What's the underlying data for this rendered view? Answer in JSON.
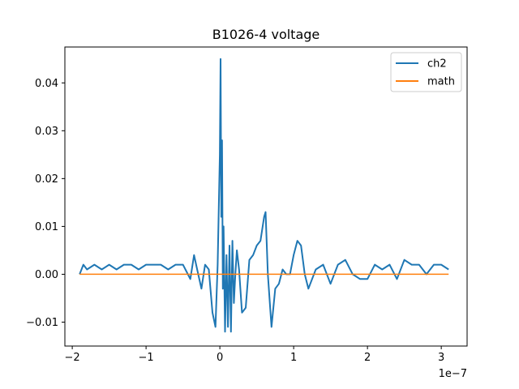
{
  "chart_data": {
    "type": "line",
    "title": "B1026-4 voltage",
    "xlabel": "",
    "ylabel": "",
    "x_offset_label": "1e−7",
    "xlim": [
      -2.1e-07,
      3.35e-07
    ],
    "ylim": [
      -0.015,
      0.0475
    ],
    "grid": false,
    "legend_position": "top-right",
    "x_ticks": [
      {
        "value": -2e-07,
        "label": "−2"
      },
      {
        "value": -1e-07,
        "label": "−1"
      },
      {
        "value": 0,
        "label": "0"
      },
      {
        "value": 1e-07,
        "label": "1"
      },
      {
        "value": 2e-07,
        "label": "2"
      },
      {
        "value": 3e-07,
        "label": "3"
      }
    ],
    "y_ticks": [
      {
        "value": -0.01,
        "label": "−0.01"
      },
      {
        "value": 0.0,
        "label": "0.00"
      },
      {
        "value": 0.01,
        "label": "0.01"
      },
      {
        "value": 0.02,
        "label": "0.02"
      },
      {
        "value": 0.03,
        "label": "0.03"
      },
      {
        "value": 0.04,
        "label": "0.04"
      }
    ],
    "series": [
      {
        "name": "ch2",
        "color": "#1f77b4",
        "x": [
          -1.9e-07,
          -1.85e-07,
          -1.8e-07,
          -1.7e-07,
          -1.6e-07,
          -1.5e-07,
          -1.4e-07,
          -1.3e-07,
          -1.2e-07,
          -1.1e-07,
          -1e-07,
          -9e-08,
          -8e-08,
          -7e-08,
          -6e-08,
          -5e-08,
          -4.5e-08,
          -4e-08,
          -3.5e-08,
          -3e-08,
          -2.5e-08,
          -2e-08,
          -1.5e-08,
          -1e-08,
          -6e-09,
          -3e-09,
          0.0,
          1e-09,
          2e-09,
          3e-09,
          4e-09,
          5e-09,
          7e-09,
          9e-09,
          1.1e-08,
          1.3e-08,
          1.5e-08,
          1.7e-08,
          1.9e-08,
          2.1e-08,
          2.3e-08,
          2.6e-08,
          3e-08,
          3.5e-08,
          4e-08,
          4.5e-08,
          5e-08,
          5.5e-08,
          6e-08,
          6.2e-08,
          6.5e-08,
          7e-08,
          7.5e-08,
          8e-08,
          8.5e-08,
          9e-08,
          9.5e-08,
          1e-07,
          1.05e-07,
          1.1e-07,
          1.15e-07,
          1.2e-07,
          1.3e-07,
          1.4e-07,
          1.5e-07,
          1.6e-07,
          1.7e-07,
          1.8e-07,
          1.9e-07,
          2e-07,
          2.1e-07,
          2.2e-07,
          2.3e-07,
          2.4e-07,
          2.5e-07,
          2.6e-07,
          2.7e-07,
          2.8e-07,
          2.9e-07,
          3e-07,
          3.1e-07
        ],
        "values": [
          0.0,
          0.002,
          0.001,
          0.002,
          0.001,
          0.002,
          0.001,
          0.002,
          0.002,
          0.001,
          0.002,
          0.002,
          0.002,
          0.001,
          0.002,
          0.002,
          0.0005,
          -0.001,
          0.004,
          0.0005,
          -0.003,
          0.002,
          0.001,
          -0.008,
          -0.011,
          0.002,
          0.025,
          0.045,
          0.012,
          0.028,
          -0.003,
          0.01,
          -0.012,
          0.004,
          -0.011,
          0.006,
          -0.012,
          0.007,
          -0.006,
          0.0,
          0.005,
          0.001,
          -0.008,
          -0.007,
          0.003,
          0.004,
          0.006,
          0.007,
          0.012,
          0.013,
          0.0,
          -0.011,
          -0.003,
          -0.002,
          0.001,
          0.0,
          0.0,
          0.004,
          0.007,
          0.006,
          0.0,
          -0.003,
          0.001,
          0.002,
          -0.002,
          0.002,
          0.003,
          0.0,
          -0.001,
          -0.001,
          0.002,
          0.001,
          0.002,
          -0.001,
          0.003,
          0.002,
          0.002,
          0.0,
          0.002,
          0.002,
          0.001
        ]
      },
      {
        "name": "math",
        "color": "#ff7f0e",
        "x": [
          -1.9e-07,
          3.1e-07
        ],
        "values": [
          0.0,
          0.0
        ]
      }
    ]
  }
}
